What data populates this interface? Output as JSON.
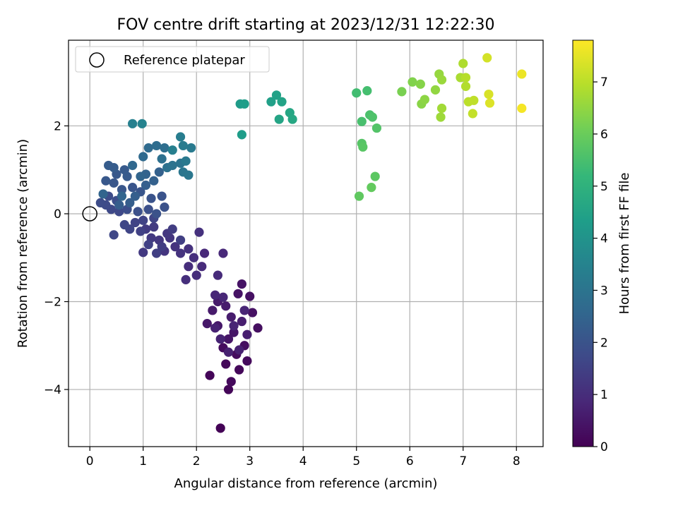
{
  "chart_data": {
    "type": "scatter",
    "title": "FOV centre drift starting at 2023/12/31 12:22:30",
    "xlabel": "Angular distance from reference (arcmin)",
    "ylabel": "Rotation from reference (arcmin)",
    "xlim": [
      -0.4,
      8.5
    ],
    "ylim": [
      -5.3,
      3.95
    ],
    "xticks": [
      0,
      1,
      2,
      3,
      4,
      5,
      6,
      7,
      8
    ],
    "yticks": [
      -4,
      -2,
      0,
      2
    ],
    "grid": true,
    "legend": {
      "location": "upper-left",
      "entries": [
        {
          "label": "Reference platepar",
          "marker": "hollow-circle"
        }
      ]
    },
    "reference_point": {
      "x": 0,
      "y": 0
    },
    "colorbar": {
      "label": "Hours from first FF file",
      "colormap": "viridis",
      "range": [
        0,
        7.8
      ],
      "ticks": [
        0,
        1,
        2,
        3,
        4,
        5,
        6,
        7
      ]
    },
    "points": [
      [
        2.45,
        -4.88,
        0.05
      ],
      [
        2.25,
        -3.68,
        0.1
      ],
      [
        2.6,
        -4.0,
        0.1
      ],
      [
        2.55,
        -3.42,
        0.15
      ],
      [
        2.8,
        -3.55,
        0.15
      ],
      [
        2.95,
        -3.35,
        0.2
      ],
      [
        2.65,
        -3.82,
        0.2
      ],
      [
        2.5,
        -3.05,
        0.25
      ],
      [
        2.75,
        -3.2,
        0.25
      ],
      [
        2.9,
        -3.0,
        0.3
      ],
      [
        3.15,
        -2.6,
        0.3
      ],
      [
        3.05,
        -2.25,
        0.35
      ],
      [
        3.0,
        -1.88,
        0.35
      ],
      [
        2.85,
        -1.6,
        0.4
      ],
      [
        2.78,
        -1.82,
        0.4
      ],
      [
        2.7,
        -2.7,
        0.45
      ],
      [
        2.6,
        -2.85,
        0.45
      ],
      [
        2.4,
        -2.55,
        0.5
      ],
      [
        2.2,
        -2.5,
        0.5
      ],
      [
        2.3,
        -2.2,
        0.55
      ],
      [
        2.4,
        -2.0,
        0.55
      ],
      [
        2.55,
        -2.1,
        0.6
      ],
      [
        2.65,
        -2.35,
        0.6
      ],
      [
        2.85,
        -2.45,
        0.65
      ],
      [
        2.95,
        -2.75,
        0.65
      ],
      [
        2.8,
        -3.1,
        0.7
      ],
      [
        2.6,
        -3.15,
        0.7
      ],
      [
        2.45,
        -2.85,
        0.75
      ],
      [
        2.35,
        -2.6,
        0.75
      ],
      [
        2.7,
        -2.55,
        0.8
      ],
      [
        2.9,
        -2.2,
        0.8
      ],
      [
        2.5,
        -1.9,
        0.85
      ],
      [
        2.35,
        -1.85,
        0.85
      ],
      [
        2.5,
        -0.9,
        0.9
      ],
      [
        2.15,
        -0.9,
        0.9
      ],
      [
        2.4,
        -1.4,
        0.95
      ],
      [
        2.1,
        -1.2,
        0.95
      ],
      [
        2.0,
        -1.4,
        1.0
      ],
      [
        1.85,
        -1.2,
        1.0
      ],
      [
        1.8,
        -1.5,
        1.05
      ],
      [
        1.95,
        -1.0,
        1.05
      ],
      [
        2.05,
        -0.42,
        1.1
      ],
      [
        1.85,
        -0.8,
        1.1
      ],
      [
        1.7,
        -0.9,
        1.15
      ],
      [
        1.6,
        -0.75,
        1.15
      ],
      [
        1.5,
        -0.55,
        1.2
      ],
      [
        1.4,
        -0.85,
        1.2
      ],
      [
        1.45,
        -0.45,
        1.25
      ],
      [
        1.3,
        -0.6,
        1.25
      ],
      [
        1.15,
        -0.55,
        1.3
      ],
      [
        1.0,
        -0.88,
        1.3
      ],
      [
        1.05,
        -0.35,
        1.35
      ],
      [
        1.2,
        -0.3,
        1.35
      ],
      [
        1.35,
        -0.75,
        1.4
      ],
      [
        1.55,
        -0.35,
        1.4
      ],
      [
        1.7,
        -0.6,
        1.45
      ],
      [
        1.25,
        -0.9,
        1.45
      ],
      [
        1.1,
        -0.7,
        1.5
      ],
      [
        0.95,
        -0.4,
        1.5
      ],
      [
        0.85,
        -0.2,
        1.55
      ],
      [
        1.0,
        -0.15,
        1.55
      ],
      [
        1.2,
        -0.1,
        1.6
      ],
      [
        0.75,
        -0.35,
        1.6
      ],
      [
        0.45,
        -0.48,
        1.65
      ],
      [
        0.65,
        -0.25,
        1.65
      ],
      [
        0.55,
        0.05,
        1.7
      ],
      [
        0.4,
        0.1,
        1.7
      ],
      [
        0.3,
        0.2,
        1.75
      ],
      [
        0.2,
        0.25,
        1.8
      ],
      [
        0.35,
        0.4,
        1.8
      ],
      [
        0.5,
        0.3,
        1.85
      ],
      [
        0.7,
        0.1,
        1.85
      ],
      [
        0.9,
        0.05,
        1.9
      ],
      [
        1.1,
        0.1,
        1.9
      ],
      [
        1.25,
        0.0,
        1.95
      ],
      [
        1.4,
        0.15,
        1.95
      ],
      [
        1.35,
        0.4,
        2.0
      ],
      [
        1.15,
        0.35,
        2.0
      ],
      [
        0.95,
        0.5,
        2.05
      ],
      [
        0.8,
        0.6,
        2.05
      ],
      [
        0.6,
        0.55,
        2.1
      ],
      [
        0.45,
        0.7,
        2.1
      ],
      [
        0.3,
        0.75,
        2.15
      ],
      [
        0.5,
        0.9,
        2.15
      ],
      [
        0.7,
        0.85,
        2.2
      ],
      [
        0.65,
        1.0,
        2.2
      ],
      [
        0.45,
        1.05,
        2.25
      ],
      [
        0.35,
        1.1,
        2.25
      ],
      [
        0.55,
        0.2,
        2.3
      ],
      [
        0.75,
        0.25,
        2.3
      ],
      [
        0.85,
        0.4,
        2.35
      ],
      [
        1.05,
        0.65,
        2.35
      ],
      [
        1.2,
        0.75,
        2.4
      ],
      [
        1.3,
        0.95,
        2.4
      ],
      [
        1.05,
        0.9,
        2.45
      ],
      [
        0.95,
        0.85,
        2.5
      ],
      [
        0.25,
        0.45,
        2.5
      ],
      [
        0.6,
        0.4,
        2.55
      ],
      [
        0.8,
        1.1,
        2.6
      ],
      [
        1.0,
        1.3,
        2.65
      ],
      [
        1.1,
        1.5,
        2.7
      ],
      [
        1.25,
        1.55,
        2.75
      ],
      [
        1.4,
        1.5,
        2.8
      ],
      [
        1.35,
        1.25,
        2.85
      ],
      [
        1.45,
        1.05,
        2.9
      ],
      [
        1.55,
        1.1,
        2.95
      ],
      [
        1.7,
        1.15,
        3.0
      ],
      [
        1.75,
        0.95,
        3.05
      ],
      [
        1.85,
        0.88,
        3.1
      ],
      [
        1.8,
        1.2,
        3.15
      ],
      [
        1.9,
        1.5,
        3.2
      ],
      [
        1.75,
        1.55,
        3.25
      ],
      [
        1.7,
        1.75,
        3.3
      ],
      [
        1.55,
        1.45,
        3.35
      ],
      [
        0.8,
        2.05,
        3.4
      ],
      [
        0.98,
        2.05,
        3.5
      ],
      [
        2.82,
        2.5,
        4.25
      ],
      [
        2.85,
        1.8,
        4.3
      ],
      [
        2.9,
        2.5,
        4.35
      ],
      [
        3.4,
        2.55,
        4.4
      ],
      [
        3.5,
        2.7,
        4.45
      ],
      [
        3.6,
        2.55,
        4.5
      ],
      [
        3.55,
        2.15,
        4.55
      ],
      [
        3.75,
        2.3,
        4.6
      ],
      [
        3.8,
        2.15,
        4.65
      ],
      [
        5.0,
        2.75,
        5.4
      ],
      [
        5.2,
        2.8,
        5.45
      ],
      [
        5.1,
        2.1,
        5.5
      ],
      [
        5.25,
        2.25,
        5.55
      ],
      [
        5.3,
        2.2,
        5.6
      ],
      [
        5.38,
        1.95,
        5.65
      ],
      [
        5.1,
        1.6,
        5.7
      ],
      [
        5.12,
        1.52,
        5.75
      ],
      [
        5.35,
        0.85,
        5.8
      ],
      [
        5.05,
        0.4,
        5.85
      ],
      [
        5.28,
        0.6,
        5.9
      ],
      [
        5.85,
        2.78,
        6.2
      ],
      [
        6.05,
        3.0,
        6.3
      ],
      [
        6.2,
        2.95,
        6.35
      ],
      [
        6.22,
        2.5,
        6.4
      ],
      [
        6.28,
        2.6,
        6.45
      ],
      [
        6.48,
        2.82,
        6.5
      ],
      [
        6.55,
        3.18,
        6.55
      ],
      [
        6.6,
        3.05,
        6.6
      ],
      [
        6.58,
        2.2,
        6.65
      ],
      [
        6.6,
        2.4,
        6.7
      ],
      [
        6.95,
        3.1,
        6.8
      ],
      [
        7.0,
        3.42,
        6.85
      ],
      [
        7.05,
        2.9,
        6.9
      ],
      [
        7.05,
        3.1,
        6.95
      ],
      [
        7.1,
        2.55,
        7.0
      ],
      [
        7.2,
        2.58,
        7.05
      ],
      [
        7.18,
        2.28,
        7.1
      ],
      [
        7.45,
        3.55,
        7.3
      ],
      [
        7.48,
        2.72,
        7.35
      ],
      [
        7.5,
        2.52,
        7.4
      ],
      [
        8.1,
        3.18,
        7.6
      ],
      [
        8.1,
        2.4,
        7.7
      ]
    ]
  }
}
